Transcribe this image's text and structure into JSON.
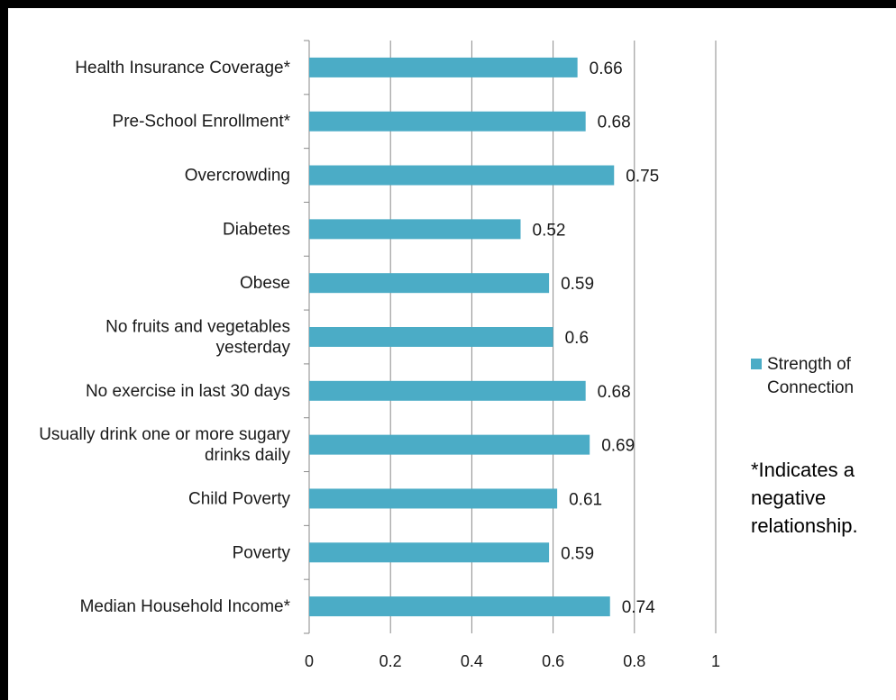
{
  "chart_data": {
    "type": "bar",
    "orientation": "horizontal",
    "categories": [
      [
        "Health Insurance Coverage*"
      ],
      [
        "Pre-School Enrollment*"
      ],
      [
        "Overcrowding"
      ],
      [
        "Diabetes"
      ],
      [
        "Obese"
      ],
      [
        "No fruits and vegetables",
        "yesterday"
      ],
      [
        "No exercise in last 30 days"
      ],
      [
        "Usually drink one or more sugary",
        "drinks daily"
      ],
      [
        "Child Poverty"
      ],
      [
        "Poverty"
      ],
      [
        "Median Household Income*"
      ]
    ],
    "values": [
      0.66,
      0.68,
      0.75,
      0.52,
      0.59,
      0.6,
      0.68,
      0.69,
      0.61,
      0.59,
      0.74
    ],
    "value_labels": [
      "0.66",
      "0.68",
      "0.75",
      "0.52",
      "0.59",
      "0.6",
      "0.68",
      "0.69",
      "0.61",
      "0.59",
      "0.74"
    ],
    "xlim": [
      0,
      1
    ],
    "xticks": [
      0,
      0.2,
      0.4,
      0.6,
      0.8,
      1
    ],
    "xtick_labels": [
      "0",
      "0.2",
      "0.4",
      "0.6",
      "0.8",
      "1"
    ],
    "series": [
      {
        "name": "Strength of Connection",
        "color": "#4bacc6"
      }
    ],
    "grid": "vertical",
    "legend_position": "right"
  },
  "legend": {
    "label": "Strength of Connection",
    "color": "#4bacc6"
  },
  "note": "*Indicates a negative relationship."
}
